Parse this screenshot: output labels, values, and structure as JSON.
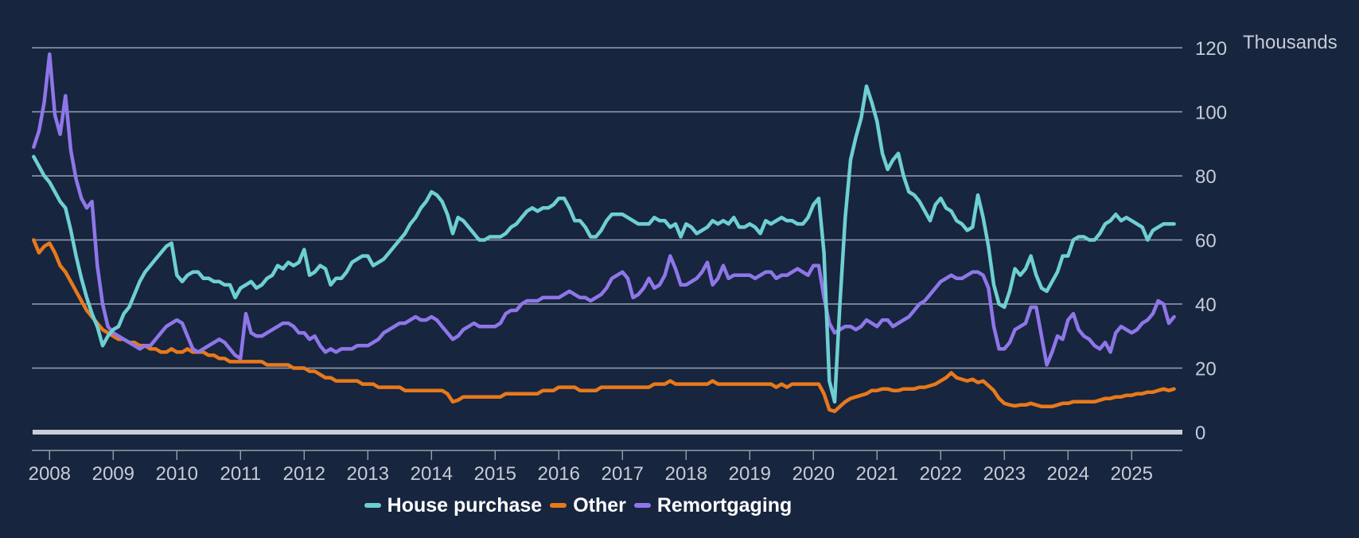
{
  "chart_data": {
    "type": "line",
    "unit_label": "Thousands",
    "frequency": "monthly",
    "x_start": "2007-10",
    "x_end": "2025-09",
    "x_tick_labels": [
      "2008",
      "2009",
      "2010",
      "2011",
      "2012",
      "2013",
      "2014",
      "2015",
      "2016",
      "2017",
      "2018",
      "2019",
      "2020",
      "2021",
      "2022",
      "2023",
      "2024",
      "2025"
    ],
    "y_ticks": [
      0,
      20,
      40,
      60,
      80,
      100,
      120
    ],
    "ylim": [
      0,
      125
    ],
    "grid": true,
    "legend_position": "bottom",
    "colors": {
      "background": "#17253F",
      "gridline": "#97A1AE",
      "zero_line": "#C9CFD7",
      "tick_text": "#C5CCD5",
      "legend_text": "#FFFFFF"
    },
    "series": [
      {
        "name": "House purchase",
        "id": "house-purchase",
        "color": "#6ECFD2",
        "z": 2,
        "values": [
          86,
          83,
          80,
          78,
          75,
          72,
          70,
          63,
          55,
          48,
          42,
          37,
          33,
          27,
          30,
          32,
          33,
          37,
          39,
          43,
          47,
          50,
          52,
          54,
          56,
          58,
          59,
          49,
          47,
          49,
          50,
          50,
          48,
          48,
          47,
          47,
          46,
          46,
          42,
          45,
          46,
          47,
          45,
          46,
          48,
          49,
          52,
          51,
          53,
          52,
          53,
          57,
          49,
          50,
          52,
          51,
          46,
          48,
          48,
          50,
          53,
          54,
          55,
          55,
          52,
          53,
          54,
          56,
          58,
          60,
          62,
          65,
          67,
          70,
          72,
          75,
          74,
          72,
          68,
          62,
          67,
          66,
          64,
          62,
          60,
          60,
          61,
          61,
          61,
          62,
          64,
          65,
          67,
          69,
          70,
          69,
          70,
          70,
          71,
          73,
          73,
          70,
          66,
          66,
          64,
          61,
          61,
          63,
          66,
          68,
          68,
          68,
          67,
          66,
          65,
          65,
          65,
          67,
          66,
          66,
          64,
          65,
          61,
          65,
          64,
          62,
          63,
          64,
          66,
          65,
          66,
          65,
          67,
          64,
          64,
          65,
          64,
          62,
          66,
          65,
          66,
          67,
          66,
          66,
          65,
          65,
          67,
          71,
          73,
          56,
          16,
          9.5,
          40,
          67,
          85,
          92,
          98,
          108,
          103,
          97,
          87,
          82,
          85,
          87,
          80,
          75,
          74,
          72,
          69,
          66,
          71,
          73,
          70,
          69,
          66,
          65,
          63,
          64,
          74,
          67,
          58,
          46,
          40,
          39,
          44,
          51,
          49,
          51,
          55,
          49,
          45,
          44,
          47,
          50,
          55,
          55,
          60,
          61,
          61,
          60,
          60,
          62,
          65,
          66,
          68,
          66,
          67,
          66,
          65,
          64,
          60,
          63,
          64,
          65,
          65,
          65
        ]
      },
      {
        "name": "Other",
        "id": "other",
        "color": "#E8791B",
        "z": 0,
        "values": [
          60,
          56,
          58,
          59,
          56,
          52,
          50,
          47,
          44,
          41,
          38,
          36,
          34,
          32,
          31,
          30,
          29,
          29,
          28,
          28,
          27,
          27,
          26,
          26,
          25,
          25,
          26,
          25,
          25,
          26,
          25,
          25,
          25,
          24,
          24,
          23,
          23,
          22,
          22,
          22,
          22,
          22,
          22,
          22,
          21,
          21,
          21,
          21,
          21,
          20,
          20,
          20,
          19,
          19,
          18,
          17,
          17,
          16,
          16,
          16,
          16,
          16,
          15,
          15,
          15,
          14,
          14,
          14,
          14,
          14,
          13,
          13,
          13,
          13,
          13,
          13,
          13,
          13,
          12,
          9.5,
          10,
          11,
          11,
          11,
          11,
          11,
          11,
          11,
          11,
          12,
          12,
          12,
          12,
          12,
          12,
          12,
          13,
          13,
          13,
          14,
          14,
          14,
          14,
          13,
          13,
          13,
          13,
          14,
          14,
          14,
          14,
          14,
          14,
          14,
          14,
          14,
          14,
          15,
          15,
          15,
          16,
          15,
          15,
          15,
          15,
          15,
          15,
          15,
          16,
          15,
          15,
          15,
          15,
          15,
          15,
          15,
          15,
          15,
          15,
          15,
          14,
          15,
          14,
          15,
          15,
          15,
          15,
          15,
          15,
          12,
          7,
          6.5,
          8,
          9.5,
          10.5,
          11,
          11.5,
          12,
          13,
          13,
          13.5,
          13.5,
          13,
          13,
          13.5,
          13.5,
          13.5,
          14,
          14,
          14.5,
          15,
          16,
          17,
          18.5,
          17,
          16.5,
          16,
          16.5,
          15.5,
          16,
          14.5,
          13,
          10.5,
          9,
          8.5,
          8.2,
          8.5,
          8.5,
          9,
          8.5,
          8,
          8,
          8,
          8.5,
          9,
          9,
          9.5,
          9.5,
          9.5,
          9.5,
          9.5,
          10,
          10.5,
          10.5,
          11,
          11,
          11.5,
          11.5,
          12,
          12,
          12.5,
          12.5,
          13,
          13.5,
          13,
          13.5
        ]
      },
      {
        "name": "Remortgaging",
        "id": "remortgaging",
        "color": "#8F76E8",
        "z": 1,
        "values": [
          89,
          94,
          103,
          118,
          99,
          93,
          105,
          88,
          79,
          73,
          70,
          72,
          52,
          40,
          33,
          31,
          30,
          29,
          28,
          27,
          26,
          27,
          27,
          29,
          31,
          33,
          34,
          35,
          34,
          30,
          26,
          25,
          26,
          27,
          28,
          29,
          28,
          26,
          24,
          23,
          37,
          31,
          30,
          30,
          31,
          32,
          33,
          34,
          34,
          33,
          31,
          31,
          29,
          30,
          27,
          25,
          26,
          25,
          26,
          26,
          26,
          27,
          27,
          27,
          28,
          29,
          31,
          32,
          33,
          34,
          34,
          35,
          36,
          35,
          35,
          36,
          35,
          33,
          31,
          29,
          30,
          32,
          33,
          34,
          33,
          33,
          33,
          33,
          34,
          37,
          38,
          38,
          40,
          41,
          41,
          41,
          42,
          42,
          42,
          42,
          43,
          44,
          43,
          42,
          42,
          41,
          42,
          43,
          45,
          48,
          49,
          50,
          48,
          42,
          43,
          45,
          48,
          45,
          46,
          49,
          55,
          51,
          46,
          46,
          47,
          48,
          50,
          53,
          46,
          48,
          52,
          48,
          49,
          49,
          49,
          49,
          48,
          49,
          50,
          50,
          48,
          49,
          49,
          50,
          51,
          50,
          49,
          52,
          52,
          42,
          34,
          31,
          32,
          33,
          33,
          32,
          33,
          35,
          34,
          33,
          35,
          35,
          33,
          34,
          35,
          36,
          38,
          40,
          41,
          43,
          45,
          47,
          48,
          49,
          48,
          48,
          49,
          50,
          50,
          49,
          45,
          33,
          26,
          26,
          28,
          32,
          33,
          34,
          39,
          39,
          30,
          21,
          25,
          30,
          29,
          35,
          37,
          32,
          30,
          29,
          27,
          26,
          28,
          25,
          31,
          33,
          32,
          31,
          32,
          34,
          35,
          37,
          41,
          40,
          34,
          36
        ]
      }
    ]
  }
}
